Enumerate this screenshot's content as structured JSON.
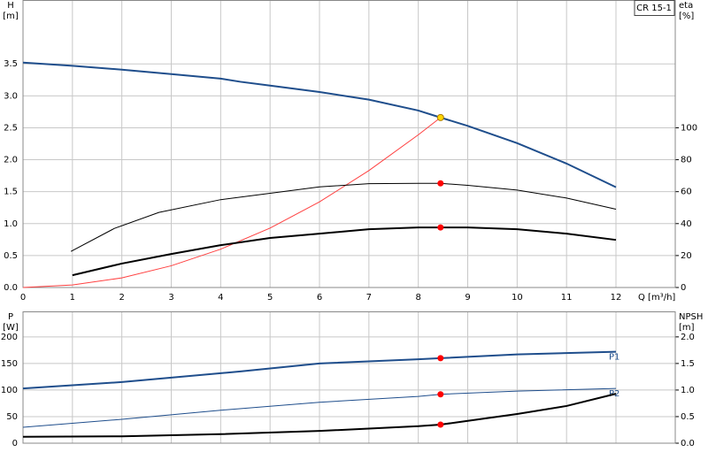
{
  "chart_data": [
    {
      "type": "line",
      "label": "CR 15-1",
      "x_label": "Q [m³/h]",
      "y_label": "H",
      "y_unit": "[m]",
      "y2_label": "eta",
      "y2_unit": "[%]",
      "xlim": [
        0,
        13.2
      ],
      "xticks": [
        0,
        1,
        2,
        3,
        4,
        5,
        6,
        7,
        8,
        9,
        10,
        11,
        12
      ],
      "ylim": [
        0,
        4.5
      ],
      "yticks": [
        {
          "value": 0,
          "label": "0.0"
        },
        {
          "value": 0.5,
          "label": "0.5"
        },
        {
          "value": 1,
          "label": "1.0"
        },
        {
          "value": 1.5,
          "label": "1.5"
        },
        {
          "value": 2,
          "label": "2.0"
        },
        {
          "value": 2.5,
          "label": "2.5"
        },
        {
          "value": 3,
          "label": "3.0"
        },
        {
          "value": 3.5,
          "label": "3.5"
        }
      ],
      "y2lim": [
        0,
        180
      ],
      "y2ticks": [
        0,
        20,
        40,
        60,
        80,
        100
      ],
      "grid": true,
      "series": [
        {
          "color": "#1f4e8c",
          "width": 2,
          "x": [
            0,
            1,
            2,
            3,
            4,
            4.4,
            5,
            6,
            7,
            8,
            8.45,
            9,
            10,
            11,
            12
          ],
          "values": [
            3.52,
            3.47,
            3.41,
            3.34,
            3.27,
            3.22,
            3.16,
            3.06,
            2.94,
            2.77,
            2.66,
            2.53,
            2.26,
            1.94,
            1.57
          ]
        },
        {
          "color": "#ff4040",
          "width": 1,
          "x": [
            0,
            1,
            2,
            3,
            4,
            5,
            6,
            7,
            8,
            8.45
          ],
          "values": [
            0,
            0.04,
            0.15,
            0.34,
            0.6,
            0.93,
            1.34,
            1.83,
            2.39,
            2.66
          ]
        },
        {
          "color": "#000000",
          "width": 1,
          "axis": "y2",
          "x": [
            0.97,
            1.85,
            2.75,
            4,
            5,
            6,
            7,
            8,
            8.45,
            9,
            10,
            11,
            12
          ],
          "values": [
            22.6,
            37,
            47,
            55,
            59,
            63,
            65,
            65.2,
            65.2,
            64,
            61,
            56,
            49
          ]
        },
        {
          "color": "#000000",
          "width": 2,
          "axis": "y2",
          "x": [
            1,
            2,
            3,
            4,
            5,
            6,
            7,
            8,
            8.45,
            9,
            10,
            11,
            12
          ],
          "values": [
            7.7,
            15,
            21,
            26.5,
            31,
            33.7,
            36.5,
            37.6,
            37.6,
            37.6,
            36.5,
            33.7,
            29.8
          ]
        }
      ],
      "points": [
        {
          "x": 8.45,
          "y": 2.66,
          "color": "#ffd700"
        },
        {
          "x": 8.45,
          "y": 65.2,
          "color": "#ff0000",
          "axis": "y2"
        },
        {
          "x": 8.45,
          "y": 37.6,
          "color": "#ff0000",
          "axis": "y2"
        }
      ]
    },
    {
      "type": "line",
      "y_label": "P",
      "y_unit": "[W]",
      "y2_label": "NPSH",
      "y2_unit": "[m]",
      "xlim": [
        0,
        13.2
      ],
      "xticks": [
        0,
        1,
        2,
        3,
        4,
        5,
        6,
        7,
        8,
        9,
        10,
        11,
        12
      ],
      "ylim": [
        0,
        248
      ],
      "yticks": [
        0,
        50,
        100,
        150,
        200
      ],
      "y2lim": [
        0,
        2.48
      ],
      "y2ticks": [
        {
          "value": 0,
          "label": "0.0"
        },
        {
          "value": 0.5,
          "label": "0.5"
        },
        {
          "value": 1,
          "label": "1.0"
        },
        {
          "value": 1.5,
          "label": "1.5"
        },
        {
          "value": 2,
          "label": "2.0"
        }
      ],
      "grid": true,
      "series": [
        {
          "name": "P1",
          "color": "#1f4e8c",
          "width": 2,
          "x": [
            0,
            2,
            4.4,
            6,
            8,
            8.45,
            10,
            12
          ],
          "values": [
            103,
            115,
            135,
            150,
            158,
            160,
            167,
            172
          ]
        },
        {
          "name": "P2",
          "color": "#1f4e8c",
          "width": 1,
          "x": [
            0,
            2,
            4,
            6,
            8,
            8.45,
            10,
            12
          ],
          "values": [
            30,
            45,
            62,
            77,
            88,
            92,
            98,
            103
          ]
        },
        {
          "color": "#000000",
          "width": 2,
          "axis": "y2",
          "x": [
            0,
            2,
            4,
            6,
            8,
            8.45,
            9,
            10,
            11,
            12
          ],
          "values": [
            0.12,
            0.13,
            0.17,
            0.23,
            0.32,
            0.35,
            0.42,
            0.55,
            0.7,
            0.93
          ]
        }
      ],
      "points": [
        {
          "x": 8.45,
          "y": 160,
          "color": "#ff0000"
        },
        {
          "x": 8.45,
          "y": 92,
          "color": "#ff0000"
        },
        {
          "x": 8.45,
          "y": 0.35,
          "color": "#ff0000",
          "axis": "y2"
        }
      ]
    }
  ]
}
